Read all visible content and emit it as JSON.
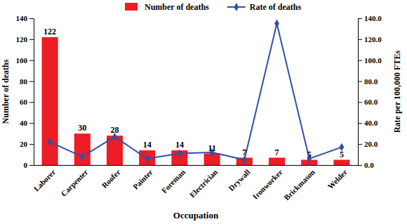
{
  "chart_data": {
    "type": "bar",
    "categories": [
      "Laborer",
      "Carpenter",
      "Roofer",
      "Painter",
      "Foreman",
      "Electrician",
      "Drywall",
      "Ironworker",
      "Brickmason",
      "Welder"
    ],
    "series": [
      {
        "name": "Number of deaths",
        "type": "bar",
        "color": "#ee1c25",
        "values": [
          122,
          30,
          28,
          14,
          14,
          11,
          7,
          7,
          5,
          5
        ]
      },
      {
        "name": "Rate of deaths",
        "type": "line",
        "color": "#3050a8",
        "marker": "diamond",
        "axis": "y2",
        "values": [
          22,
          8,
          27,
          6,
          11,
          12,
          5,
          135,
          6,
          17
        ]
      }
    ],
    "data_labels": true,
    "x_label": "Occupation",
    "y_label": "Number of deaths",
    "y2_label": "Rate per 100,000 FTEs",
    "ylim": [
      0,
      140
    ],
    "yticks": [
      0,
      20,
      40,
      60,
      80,
      100,
      120,
      140
    ],
    "y2lim": [
      0,
      140
    ],
    "y2ticks": [
      {
        "value": 0,
        "label": "0.0"
      },
      {
        "value": 20,
        "label": "20.0"
      },
      {
        "value": 40,
        "label": "40.0"
      },
      {
        "value": 60,
        "label": "60.0"
      },
      {
        "value": 80,
        "label": "80.0"
      },
      {
        "value": 100,
        "label": "100.0"
      },
      {
        "value": 120,
        "label": "120.0"
      },
      {
        "value": 140,
        "label": "140.0"
      }
    ],
    "legend": "top"
  }
}
